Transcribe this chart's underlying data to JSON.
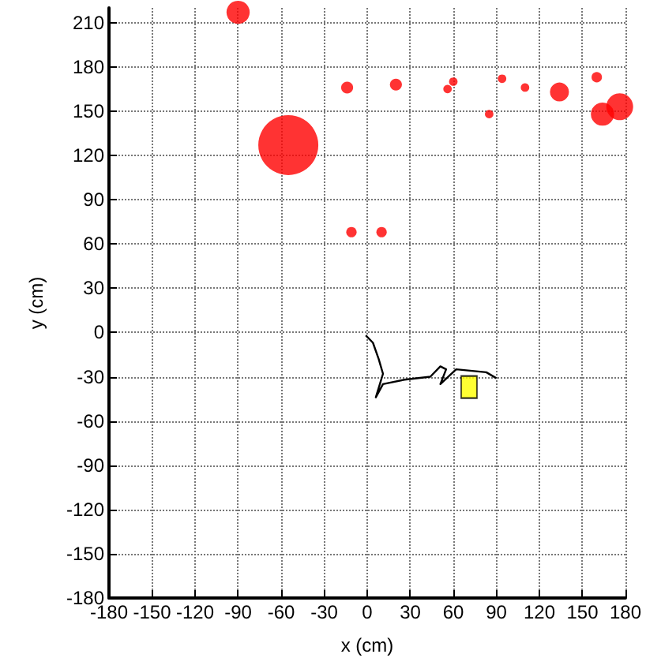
{
  "chart_data": {
    "type": "scatter",
    "xlabel": "x (cm)",
    "ylabel": "y (cm)",
    "xlim": [
      -180,
      180
    ],
    "xticks": [
      -180,
      -150,
      -120,
      -90,
      -60,
      -30,
      0,
      30,
      60,
      90,
      120,
      150,
      180
    ],
    "ylim": [
      -180,
      220
    ],
    "yticks": [
      -180,
      -150,
      -120,
      -90,
      -60,
      -30,
      0,
      30,
      60,
      90,
      120,
      150,
      180,
      210
    ],
    "grid": true,
    "series": [
      {
        "type": "bubble",
        "color": "#ff0000",
        "x": [
          -90,
          -55,
          -14,
          20,
          56,
          60,
          85,
          94,
          110,
          134,
          160,
          164,
          176,
          -11,
          10
        ],
        "values": [
          217,
          127,
          166,
          168,
          165,
          170,
          148,
          172,
          166,
          163,
          173,
          148,
          153,
          68,
          68
        ],
        "sizes": [
          0.15,
          1,
          0.04,
          0.04,
          0.02,
          0.02,
          0.02,
          0.02,
          0.02,
          0.1,
          0.03,
          0.15,
          0.2,
          0.03,
          0.03
        ]
      },
      {
        "type": "line",
        "color": "#000000",
        "marker": "none",
        "x": [
          -1,
          4,
          8,
          11,
          6,
          11,
          26,
          44,
          51,
          55,
          51,
          62,
          83,
          90
        ],
        "values": [
          -2,
          -7,
          -18,
          -28,
          -44,
          -35,
          -32,
          -30,
          -23,
          -25,
          -35,
          -25,
          -27,
          -31
        ]
      },
      {
        "color": "#ffff00",
        "marker": "square",
        "x": [
          71
        ],
        "values": [
          -37
        ]
      }
    ]
  }
}
